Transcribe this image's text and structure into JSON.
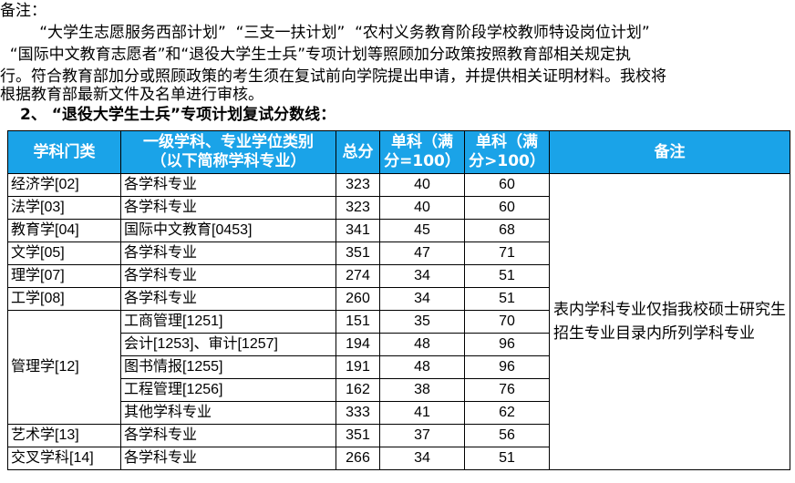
{
  "intro": {
    "line1": "备注：",
    "line2": "        “大学生志愿服务西部计划”  “三支一扶计划”  “农村义务教育阶段学校教师特设岗位计划”",
    "line3": "  “国际中文教育志愿者”和“退役大学生士兵”专项计划等照顾加分政策按照教育部相关规定执",
    "line4": "行。符合教育部加分或照顾政策的考生须在复试前向学院提出申请，并提供相关证明材料。我校将",
    "line5": "根据教育部最新文件及名单进行审核。"
  },
  "heading": "2、 “退役大学生士兵”专项计划复试分数线：",
  "table": {
    "headers": {
      "category": "学科门类",
      "major_line1": "一级学科、专业学位类别",
      "major_line2": "（以下简称学科专业）",
      "total": "总分",
      "single100_line1": "单科（满",
      "single100_line2": "分=100）",
      "single100plus_line1": "单科（满",
      "single100plus_line2": "分>100）",
      "note": "备注"
    },
    "note_text": "表内学科专业仅指我校硕士研究生招生专业目录内所列学科专业",
    "rows": [
      {
        "category": "经济学[02]",
        "major": "各学科专业",
        "total": "323",
        "s100": "40",
        "s100plus": "60"
      },
      {
        "category": "法学[03]",
        "major": "各学科专业",
        "total": "323",
        "s100": "40",
        "s100plus": "60"
      },
      {
        "category": "教育学[04]",
        "major": "国际中文教育[0453]",
        "total": "341",
        "s100": "45",
        "s100plus": "68"
      },
      {
        "category": "文学[05]",
        "major": "各学科专业",
        "total": "351",
        "s100": "47",
        "s100plus": "71"
      },
      {
        "category": "理学[07]",
        "major": "各学科专业",
        "total": "274",
        "s100": "34",
        "s100plus": "51"
      },
      {
        "category": "工学[08]",
        "major": "各学科专业",
        "total": "260",
        "s100": "34",
        "s100plus": "51"
      },
      {
        "category": "管理学[12]",
        "major": "工商管理[1251]",
        "total": "151",
        "s100": "35",
        "s100plus": "70"
      },
      {
        "category": "",
        "major": "会计[1253]、审计[1257]",
        "total": "194",
        "s100": "48",
        "s100plus": "96"
      },
      {
        "category": "",
        "major": "图书情报[1255]",
        "total": "191",
        "s100": "48",
        "s100plus": "96"
      },
      {
        "category": "",
        "major": "工程管理[1256]",
        "total": "162",
        "s100": "38",
        "s100plus": "76"
      },
      {
        "category": "",
        "major": "其他学科专业",
        "total": "333",
        "s100": "41",
        "s100plus": "62"
      },
      {
        "category": "艺术学[13]",
        "major": "各学科专业",
        "total": "351",
        "s100": "37",
        "s100plus": "56"
      },
      {
        "category": "交叉学科[14]",
        "major": "各学科专业",
        "total": "266",
        "s100": "34",
        "s100plus": "51"
      }
    ]
  }
}
